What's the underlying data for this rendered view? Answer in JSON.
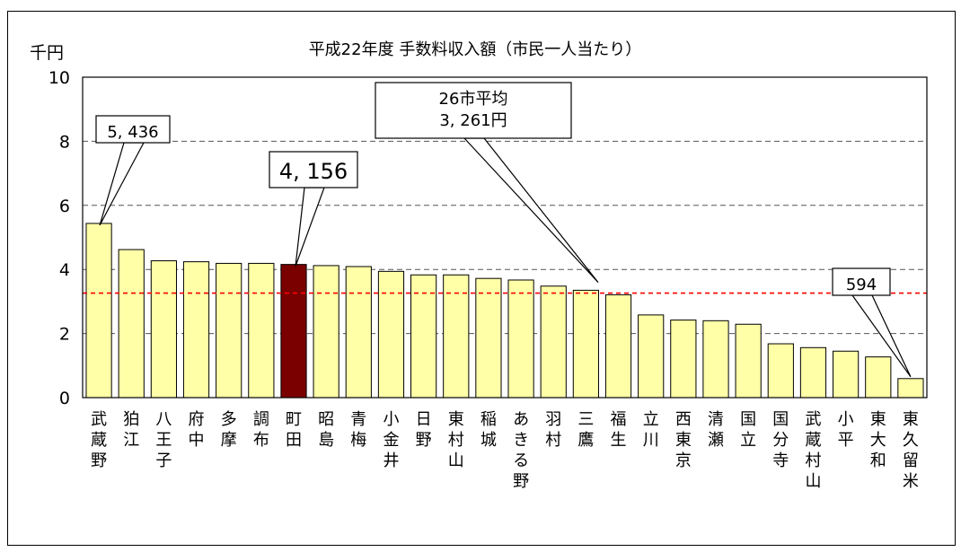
{
  "chart_data": {
    "type": "bar",
    "title": "平成22年度 手数料収入額（市民一人当たり）",
    "unit_label": "千円",
    "ylim": [
      0,
      10
    ],
    "yticks": [
      "0",
      "2",
      "4",
      "6",
      "8",
      "10"
    ],
    "grid": "horizontal dashed",
    "categories": [
      "武蔵野",
      "狛江",
      "八王子",
      "府中",
      "多摩",
      "調布",
      "町田",
      "昭島",
      "青梅",
      "小金井",
      "日野",
      "東村山",
      "稲城",
      "あきる野",
      "羽村",
      "三鷹",
      "福生",
      "立川",
      "西東京",
      "清瀬",
      "国立",
      "国分寺",
      "武蔵村山",
      "小平",
      "東大和",
      "東久留米"
    ],
    "values": [
      5.436,
      4.62,
      4.27,
      4.24,
      4.19,
      4.19,
      4.156,
      4.12,
      4.09,
      3.94,
      3.83,
      3.83,
      3.72,
      3.67,
      3.48,
      3.35,
      3.21,
      2.58,
      2.42,
      2.4,
      2.29,
      1.68,
      1.56,
      1.45,
      1.27,
      0.594
    ],
    "highlight_index": 6,
    "average": {
      "value": 3.261,
      "label_lines": [
        "26市平均",
        "3, 261円"
      ]
    },
    "callouts": [
      {
        "index": 0,
        "text": "5, 436"
      },
      {
        "index": 6,
        "text": "4, 156"
      },
      {
        "index": 25,
        "text": "594"
      }
    ],
    "colors": {
      "bar": "#FFFFA8",
      "highlight": "#7A0000",
      "average_line": "#FF0000",
      "grid": "#555555"
    }
  }
}
